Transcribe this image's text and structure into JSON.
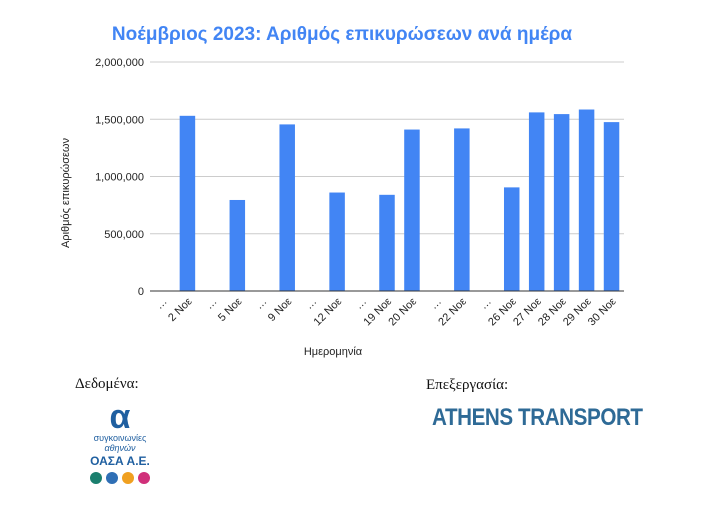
{
  "chart_data": {
    "type": "bar",
    "title": "Νοέμβριος 2023: Αριθμός επικυρώσεων ανά ημέρα",
    "xlabel": "Ημερομηνία",
    "ylabel": "Αριθμός επικυρώσεων",
    "ylim": [
      0,
      2000000
    ],
    "yticks": [
      0,
      500000,
      1000000,
      1500000,
      2000000
    ],
    "ytick_labels": [
      "0",
      "500,000",
      "1,000,000",
      "1,500,000",
      "2,000,000"
    ],
    "grid": true,
    "legend": "none",
    "bar_color": "#4285f4",
    "categories": [
      "…",
      "2 Νοε",
      "…",
      "5 Νοε",
      "…",
      "9 Νοε",
      "…",
      "12 Νοε",
      "…",
      "19 Νοε",
      "20 Νοε",
      "…",
      "22 Νοε",
      "…",
      "26 Νοε",
      "27 Νοε",
      "28 Νοε",
      "29 Νοε",
      "30 Νοε"
    ],
    "values": [
      null,
      1530000,
      null,
      795000,
      null,
      1455000,
      null,
      860000,
      null,
      840000,
      1410000,
      null,
      1420000,
      null,
      905000,
      1560000,
      1545000,
      1585000,
      1475000
    ]
  },
  "credits": {
    "data_label": "Δεδομένα:",
    "processing_label": "Επεξεργασία:"
  },
  "oasa_logo": {
    "mark": "α",
    "line1": "συγκοινωνίες",
    "line2": "αθηνών",
    "line3": "ΟΑΣΑ Α.Ε.",
    "dot_colors": [
      "#1a7f6e",
      "#2f6fb5",
      "#f0a020",
      "#d0307a"
    ]
  },
  "athens_logo": {
    "text": "ATHENS TRANSPORT",
    "color": "#2e6a96"
  }
}
